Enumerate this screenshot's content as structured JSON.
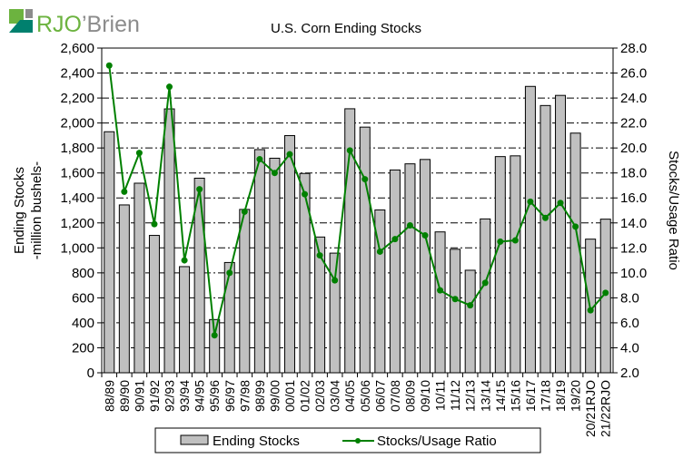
{
  "logo": {
    "text": "RJO'Brien",
    "colors": {
      "green": "#6cb33f",
      "teal": "#00806e",
      "gray": "#8c8c8c"
    }
  },
  "chart_data": {
    "type": "bar+line",
    "title": "U.S. Corn Ending Stocks",
    "ylabel": "Ending Stocks -million bushels-",
    "ylabel_lines": [
      "Ending Stocks",
      "-million bushels-"
    ],
    "y2label": "Stocks/Usage Ratio",
    "ylim": [
      0,
      2600
    ],
    "y2lim": [
      2.0,
      28.0
    ],
    "yticks": [
      "0",
      "200",
      "400",
      "600",
      "800",
      "1,000",
      "1,200",
      "1,400",
      "1,600",
      "1,800",
      "2,000",
      "2,200",
      "2,400",
      "2,600"
    ],
    "y2ticks": [
      "2.0",
      "4.0",
      "6.0",
      "8.0",
      "10.0",
      "12.0",
      "14.0",
      "16.0",
      "18.0",
      "20.0",
      "22.0",
      "24.0",
      "26.0",
      "28.0"
    ],
    "grid": true,
    "legend_position": "bottom",
    "categories": [
      "88/89",
      "89/90",
      "90/91",
      "91/92",
      "92/93",
      "93/94",
      "94/95",
      "95/96",
      "96/97",
      "97/98",
      "98/99",
      "99/00",
      "00/01",
      "01/02",
      "02/03",
      "03/04",
      "04/05",
      "05/06",
      "06/07",
      "07/08",
      "08/09",
      "09/10",
      "10/11",
      "11/12",
      "12/13",
      "13/14",
      "14/15",
      "15/16",
      "16/17",
      "17/18",
      "18/19",
      "19/20",
      "20/21RJO",
      "21/22RJO"
    ],
    "series": [
      {
        "name": "Ending Stocks",
        "type": "bar",
        "axis": "left",
        "color": "#c0c0c0",
        "values": [
          1930,
          1344,
          1518,
          1100,
          2113,
          850,
          1558,
          426,
          883,
          1308,
          1787,
          1718,
          1899,
          1596,
          1087,
          958,
          2114,
          1967,
          1304,
          1624,
          1673,
          1708,
          1128,
          989,
          821,
          1232,
          1731,
          1737,
          2293,
          2140,
          2221,
          1919,
          1070,
          1230
        ]
      },
      {
        "name": "Stocks/Usage Ratio",
        "type": "line",
        "axis": "right",
        "color": "#008000",
        "values": [
          26.6,
          16.5,
          19.6,
          13.9,
          24.9,
          11.0,
          16.7,
          5.0,
          10.0,
          14.9,
          19.1,
          18.0,
          19.5,
          16.3,
          11.4,
          9.4,
          19.8,
          17.5,
          11.7,
          12.7,
          13.8,
          13.0,
          8.6,
          7.9,
          7.4,
          9.2,
          12.5,
          12.6,
          15.7,
          14.4,
          15.6,
          13.7,
          7.0,
          8.4
        ]
      }
    ]
  }
}
